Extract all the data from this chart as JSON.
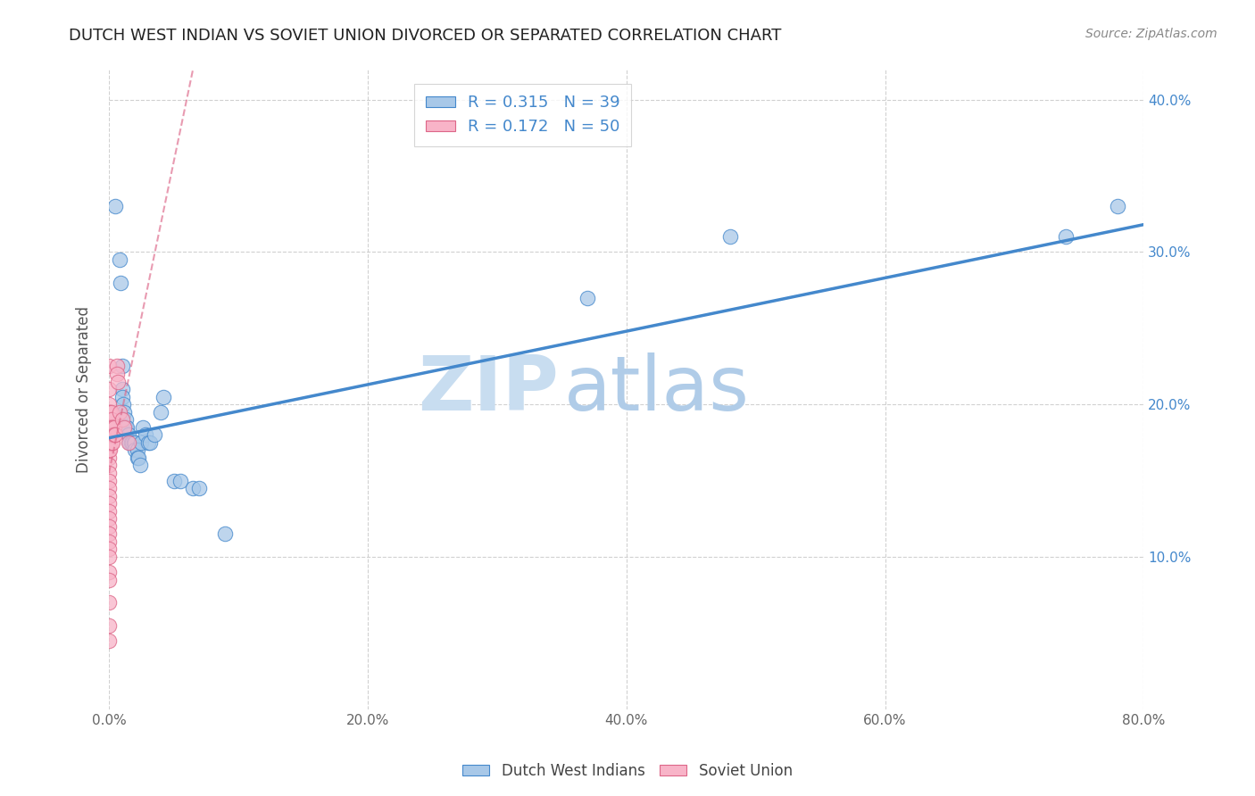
{
  "title": "DUTCH WEST INDIAN VS SOVIET UNION DIVORCED OR SEPARATED CORRELATION CHART",
  "source": "Source: ZipAtlas.com",
  "ylabel_label": "Divorced or Separated",
  "xlabel_bottom": [
    "Dutch West Indians",
    "Soviet Union"
  ],
  "xlim": [
    0,
    0.8
  ],
  "ylim": [
    0,
    0.42
  ],
  "blue_R": 0.315,
  "blue_N": 39,
  "pink_R": 0.172,
  "pink_N": 50,
  "blue_color": "#a8c8e8",
  "pink_color": "#f8b4c8",
  "blue_line_color": "#4488cc",
  "pink_line_color": "#dd6688",
  "blue_scatter": [
    [
      0.005,
      0.33
    ],
    [
      0.008,
      0.295
    ],
    [
      0.009,
      0.28
    ],
    [
      0.01,
      0.225
    ],
    [
      0.01,
      0.21
    ],
    [
      0.01,
      0.205
    ],
    [
      0.011,
      0.2
    ],
    [
      0.012,
      0.195
    ],
    [
      0.013,
      0.19
    ],
    [
      0.013,
      0.185
    ],
    [
      0.014,
      0.185
    ],
    [
      0.015,
      0.18
    ],
    [
      0.016,
      0.175
    ],
    [
      0.017,
      0.175
    ],
    [
      0.018,
      0.175
    ],
    [
      0.019,
      0.175
    ],
    [
      0.02,
      0.175
    ],
    [
      0.02,
      0.17
    ],
    [
      0.022,
      0.17
    ],
    [
      0.022,
      0.165
    ],
    [
      0.023,
      0.165
    ],
    [
      0.024,
      0.16
    ],
    [
      0.025,
      0.175
    ],
    [
      0.026,
      0.185
    ],
    [
      0.028,
      0.18
    ],
    [
      0.03,
      0.175
    ],
    [
      0.032,
      0.175
    ],
    [
      0.035,
      0.18
    ],
    [
      0.04,
      0.195
    ],
    [
      0.042,
      0.205
    ],
    [
      0.05,
      0.15
    ],
    [
      0.055,
      0.15
    ],
    [
      0.065,
      0.145
    ],
    [
      0.07,
      0.145
    ],
    [
      0.09,
      0.115
    ],
    [
      0.37,
      0.27
    ],
    [
      0.48,
      0.31
    ],
    [
      0.74,
      0.31
    ],
    [
      0.78,
      0.33
    ]
  ],
  "pink_scatter": [
    [
      0.0,
      0.225
    ],
    [
      0.0,
      0.21
    ],
    [
      0.0,
      0.2
    ],
    [
      0.0,
      0.195
    ],
    [
      0.0,
      0.185
    ],
    [
      0.0,
      0.18
    ],
    [
      0.0,
      0.175
    ],
    [
      0.0,
      0.17
    ],
    [
      0.0,
      0.165
    ],
    [
      0.0,
      0.16
    ],
    [
      0.0,
      0.155
    ],
    [
      0.0,
      0.15
    ],
    [
      0.0,
      0.145
    ],
    [
      0.0,
      0.14
    ],
    [
      0.0,
      0.135
    ],
    [
      0.0,
      0.13
    ],
    [
      0.0,
      0.125
    ],
    [
      0.0,
      0.12
    ],
    [
      0.0,
      0.115
    ],
    [
      0.0,
      0.11
    ],
    [
      0.0,
      0.105
    ],
    [
      0.0,
      0.1
    ],
    [
      0.0,
      0.09
    ],
    [
      0.0,
      0.085
    ],
    [
      0.0,
      0.07
    ],
    [
      0.0,
      0.055
    ],
    [
      0.0,
      0.045
    ],
    [
      0.001,
      0.195
    ],
    [
      0.001,
      0.185
    ],
    [
      0.001,
      0.18
    ],
    [
      0.001,
      0.175
    ],
    [
      0.001,
      0.17
    ],
    [
      0.002,
      0.195
    ],
    [
      0.002,
      0.19
    ],
    [
      0.002,
      0.185
    ],
    [
      0.002,
      0.18
    ],
    [
      0.002,
      0.175
    ],
    [
      0.003,
      0.185
    ],
    [
      0.003,
      0.18
    ],
    [
      0.003,
      0.175
    ],
    [
      0.004,
      0.185
    ],
    [
      0.004,
      0.18
    ],
    [
      0.005,
      0.18
    ],
    [
      0.006,
      0.225
    ],
    [
      0.006,
      0.22
    ],
    [
      0.007,
      0.215
    ],
    [
      0.008,
      0.195
    ],
    [
      0.01,
      0.19
    ],
    [
      0.012,
      0.185
    ],
    [
      0.015,
      0.175
    ]
  ],
  "blue_line_x": [
    0.0,
    0.8
  ],
  "blue_line_y": [
    0.178,
    0.318
  ],
  "pink_line_x": [
    0.0,
    0.065
  ],
  "pink_line_y": [
    0.155,
    0.42
  ],
  "watermark_zip": "ZIP",
  "watermark_atlas": "atlas",
  "title_fontsize": 13,
  "axis_tick_fontsize": 11,
  "legend_fontsize": 13
}
